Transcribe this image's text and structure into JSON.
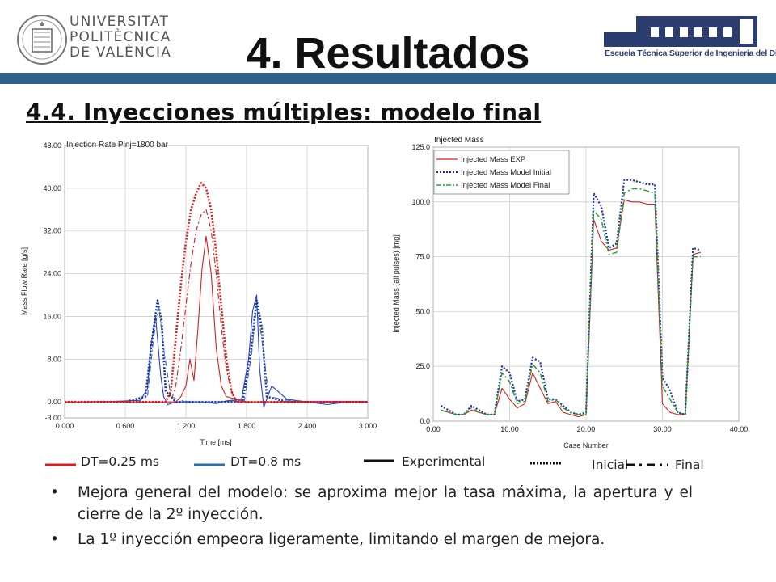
{
  "header": {
    "title": "4. Resultados",
    "subtitle": "4.4. Inyecciones múltiples: modelo final",
    "university": [
      "UNIVERSITAT",
      "POLITÈCNICA",
      "DE VALÈNCIA"
    ],
    "school": "Escuela Técnica Superior de Ingeniería del Diseño",
    "band_color": "#2e5f86"
  },
  "legend": {
    "dt025": "DT=0.25 ms",
    "dt08": "DT=0.8 ms",
    "experimental": "Experimental",
    "inicial": "Inicial",
    "final": "Final",
    "colors": {
      "dt025": "#d42020",
      "dt08": "#2a72a8",
      "style": "#111111"
    }
  },
  "bullets": [
    "Mejora general del modelo: se aproxima mejor la tasa máxima, la apertura y el cierre de la 2º inyección.",
    "La 1º inyección empeora ligeramente, limitando el margen de mejora."
  ],
  "chart_data": [
    {
      "type": "line",
      "title": "Injection Rate Pinj=1800 bar",
      "xlabel": "Time [ms]",
      "ylabel": "Mass Flow Rate [g/s]",
      "xlim": [
        0,
        3.0
      ],
      "ylim": [
        -3.0,
        48.0
      ],
      "xticks": [
        "0.000",
        "0.600",
        "1.200",
        "1.800",
        "2.400",
        "3.000"
      ],
      "yticks": [
        "-3.00",
        "0.00",
        "8.00",
        "16.00",
        "24.00",
        "32.00",
        "40.00",
        "48.00"
      ],
      "grid": true,
      "series": [
        {
          "group": "DT=0.8 ms",
          "style": "solid",
          "color": "#2a40c8",
          "x": [
            0,
            0.5,
            0.75,
            0.82,
            0.85,
            0.9,
            0.95,
            0.98,
            1.02,
            1.1,
            1.2,
            1.35,
            1.5,
            1.6,
            1.75,
            1.82,
            1.86,
            1.9,
            1.93,
            1.97,
            2.05,
            2.2,
            2.4,
            2.6,
            2.8,
            3.0
          ],
          "y": [
            0,
            0.1,
            0.3,
            2.5,
            10,
            16,
            5,
            1,
            -0.5,
            0,
            0,
            0,
            -0.3,
            0.2,
            0.5,
            8,
            17,
            20,
            6,
            -1,
            3,
            0.5,
            0,
            -0.5,
            0,
            0
          ]
        },
        {
          "group": "DT=0.8 ms",
          "style": "dotted",
          "color": "#1f2fa8",
          "x": [
            0,
            0.6,
            0.8,
            0.86,
            0.92,
            0.96,
            1.0,
            1.1,
            1.2,
            1.5,
            1.76,
            1.84,
            1.9,
            1.95,
            2.0,
            2.2,
            2.5,
            3.0
          ],
          "y": [
            0,
            0,
            1,
            11,
            19,
            15,
            2,
            0,
            0,
            0,
            0,
            9,
            19,
            14,
            1,
            0,
            0,
            0
          ]
        },
        {
          "group": "DT=0.8 ms",
          "style": "dashdot",
          "color": "#2a72a8",
          "x": [
            0,
            0.7,
            0.82,
            0.88,
            0.93,
            0.98,
            1.05,
            1.2,
            1.5,
            1.78,
            1.85,
            1.9,
            1.95,
            2.02,
            2.3,
            3.0
          ],
          "y": [
            0,
            0,
            1,
            12,
            18,
            10,
            1,
            0,
            0,
            0.3,
            9,
            18,
            12,
            1,
            0,
            0
          ]
        },
        {
          "group": "DT=0.25 ms",
          "style": "solid",
          "color": "#d42020",
          "x": [
            0,
            0.9,
            1.1,
            1.15,
            1.2,
            1.24,
            1.28,
            1.32,
            1.36,
            1.4,
            1.45,
            1.5,
            1.55,
            1.6,
            1.7,
            1.8,
            2.0,
            2.5,
            3.0
          ],
          "y": [
            0,
            0,
            0,
            1,
            3,
            8,
            4,
            14,
            25,
            31,
            24,
            10,
            3,
            1,
            0.5,
            0,
            0,
            0,
            0
          ]
        },
        {
          "group": "DT=0.25 ms",
          "style": "dotted",
          "color": "#d42020",
          "x": [
            0,
            1.0,
            1.05,
            1.1,
            1.15,
            1.2,
            1.25,
            1.3,
            1.35,
            1.4,
            1.45,
            1.5,
            1.55,
            1.6,
            1.65,
            1.7,
            1.8,
            2.0,
            3.0
          ],
          "y": [
            0,
            0,
            2,
            12,
            22,
            30,
            36,
            39,
            41,
            40,
            36,
            28,
            18,
            8,
            2,
            0,
            0,
            0,
            0
          ]
        },
        {
          "group": "DT=0.25 ms",
          "style": "dashdot",
          "color": "#d42020",
          "x": [
            0,
            1.05,
            1.1,
            1.15,
            1.2,
            1.25,
            1.3,
            1.35,
            1.4,
            1.45,
            1.5,
            1.55,
            1.6,
            1.65,
            1.7,
            1.8,
            3.0
          ],
          "y": [
            0,
            0,
            3,
            10,
            18,
            26,
            32,
            35,
            36,
            32,
            24,
            14,
            6,
            2,
            0,
            0,
            0
          ]
        }
      ]
    },
    {
      "type": "line",
      "title": "Injected Mass",
      "xlabel": "Case Number",
      "ylabel": "Injected Mass (all pulses) [mg]",
      "xlim": [
        0,
        40
      ],
      "ylim": [
        0,
        125
      ],
      "xticks": [
        "0.00",
        "10.00",
        "20.00",
        "30.00",
        "40.00"
      ],
      "yticks": [
        "0.0",
        "25.0",
        "50.0",
        "75.0",
        "100.0",
        "125.0"
      ],
      "grid": true,
      "legend_position": "top-left",
      "series": [
        {
          "name": "Injected Mass EXP",
          "color": "#d42020",
          "style": "solid",
          "x": [
            1,
            2,
            3,
            4,
            5,
            6,
            7,
            8,
            9,
            10,
            11,
            12,
            13,
            14,
            15,
            16,
            17,
            18,
            19,
            20,
            21,
            22,
            23,
            24,
            25,
            26,
            27,
            28,
            29,
            30,
            31,
            32,
            33,
            34,
            35
          ],
          "y": [
            5,
            4,
            3,
            3,
            5,
            4,
            3,
            3,
            15,
            10,
            6,
            8,
            22,
            15,
            8,
            9,
            4,
            3,
            2,
            3,
            92,
            82,
            78,
            79,
            101,
            100,
            100,
            99,
            99,
            8,
            4,
            3,
            3,
            76,
            77
          ]
        },
        {
          "name": "Injected Mass Model Initial",
          "color": "#1f2fa8",
          "style": "dotted",
          "x": [
            1,
            2,
            3,
            4,
            5,
            6,
            7,
            8,
            9,
            10,
            11,
            12,
            13,
            14,
            15,
            16,
            17,
            18,
            19,
            20,
            21,
            22,
            23,
            24,
            25,
            26,
            27,
            28,
            29,
            30,
            31,
            32,
            33,
            34,
            35
          ],
          "y": [
            7,
            5,
            3,
            3,
            7,
            5,
            3,
            3,
            25,
            22,
            9,
            10,
            29,
            27,
            10,
            10,
            7,
            4,
            3,
            4,
            104,
            98,
            79,
            81,
            110,
            110,
            109,
            108,
            108,
            20,
            14,
            4,
            3,
            79,
            78
          ]
        },
        {
          "name": "Injected Mass Model Final",
          "color": "#2aa02a",
          "style": "dashdot",
          "x": [
            1,
            2,
            3,
            4,
            5,
            6,
            7,
            8,
            9,
            10,
            11,
            12,
            13,
            14,
            15,
            16,
            17,
            18,
            19,
            20,
            21,
            22,
            23,
            24,
            25,
            26,
            27,
            28,
            29,
            30,
            31,
            32,
            33,
            34,
            35
          ],
          "y": [
            5,
            4,
            3,
            3,
            6,
            4,
            3,
            3,
            22,
            18,
            8,
            9,
            26,
            22,
            9,
            10,
            6,
            4,
            3,
            3,
            96,
            92,
            76,
            77,
            104,
            106,
            106,
            105,
            104,
            16,
            10,
            4,
            3,
            75,
            75
          ]
        }
      ]
    }
  ]
}
